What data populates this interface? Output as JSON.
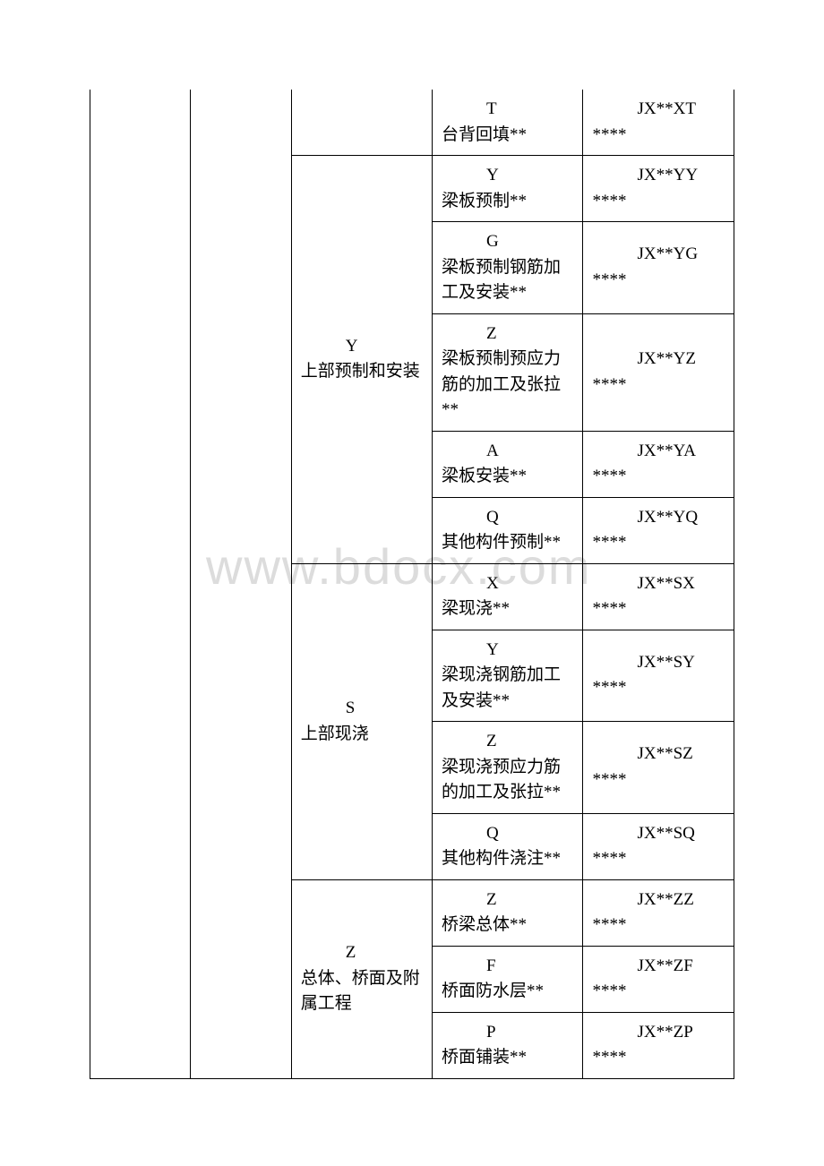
{
  "watermark": "www.bdocx.com",
  "groups": [
    {
      "code": "",
      "name": "",
      "rows": [
        {
          "itemCode": "T",
          "itemName": "台背回填**",
          "result": "JX**XT ****",
          "continuation": true
        }
      ]
    },
    {
      "code": "Y",
      "name": "上部预制和安装",
      "rows": [
        {
          "itemCode": "Y",
          "itemName": "梁板预制**",
          "result": "JX**YY ****"
        },
        {
          "itemCode": "G",
          "itemName": "梁板预制钢筋加工及安装**",
          "result": "JX**YG ****"
        },
        {
          "itemCode": "Z",
          "itemName": "梁板预制预应力筋的加工及张拉**",
          "result": "JX**YZ ****"
        },
        {
          "itemCode": "A",
          "itemName": "梁板安装**",
          "result": "JX**YA ****"
        },
        {
          "itemCode": "Q",
          "itemName": "其他构件预制**",
          "result": "JX**YQ ****"
        }
      ]
    },
    {
      "code": "S",
      "name": "上部现浇",
      "rows": [
        {
          "itemCode": "X",
          "itemName": "梁现浇**",
          "result": "JX**SX ****"
        },
        {
          "itemCode": "Y",
          "itemName": "梁现浇钢筋加工及安装**",
          "result": "JX**SY ****"
        },
        {
          "itemCode": "Z",
          "itemName": "梁现浇预应力筋的加工及张拉**",
          "result": "JX**SZ ****"
        },
        {
          "itemCode": "Q",
          "itemName": "其他构件浇注**",
          "result": "JX**SQ ****"
        }
      ]
    },
    {
      "code": "Z",
      "name": "总体、桥面及附属工程",
      "rows": [
        {
          "itemCode": "Z",
          "itemName": "桥梁总体**",
          "result": "JX**ZZ ****"
        },
        {
          "itemCode": "F",
          "itemName": "桥面防水层**",
          "result": "JX**ZF ****"
        },
        {
          "itemCode": "P",
          "itemName": "桥面铺装**",
          "result": "JX**ZP ****"
        }
      ]
    }
  ]
}
